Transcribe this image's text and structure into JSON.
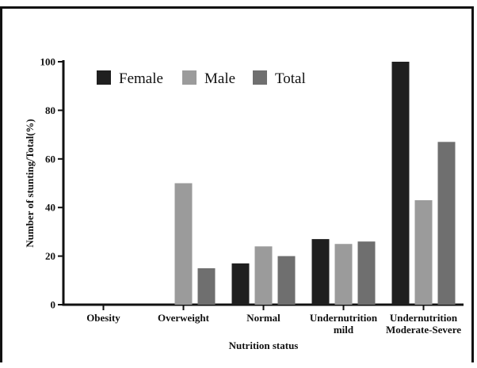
{
  "chart_data": {
    "type": "bar",
    "categories": [
      [
        "Obesity"
      ],
      [
        "Overweight"
      ],
      [
        "Normal"
      ],
      [
        "Undernutrition",
        "mild"
      ],
      [
        "Undernutrition",
        "Moderate-Severe"
      ]
    ],
    "series": [
      {
        "name": "Female",
        "color": "#1f1f1f",
        "values": [
          0,
          0,
          17,
          27,
          100
        ]
      },
      {
        "name": "Male",
        "color": "#9b9b9b",
        "values": [
          0,
          50,
          24,
          25,
          43
        ]
      },
      {
        "name": "Total",
        "color": "#6f6f6f",
        "values": [
          0,
          15,
          20,
          26,
          67
        ]
      }
    ],
    "xlabel": "Nutrition status",
    "ylabel": "Number of stunting/Total(%)",
    "ylim": [
      0,
      100
    ],
    "yticks": [
      0,
      20,
      40,
      60,
      80,
      100
    ],
    "legend": "top-left",
    "grid": false
  }
}
